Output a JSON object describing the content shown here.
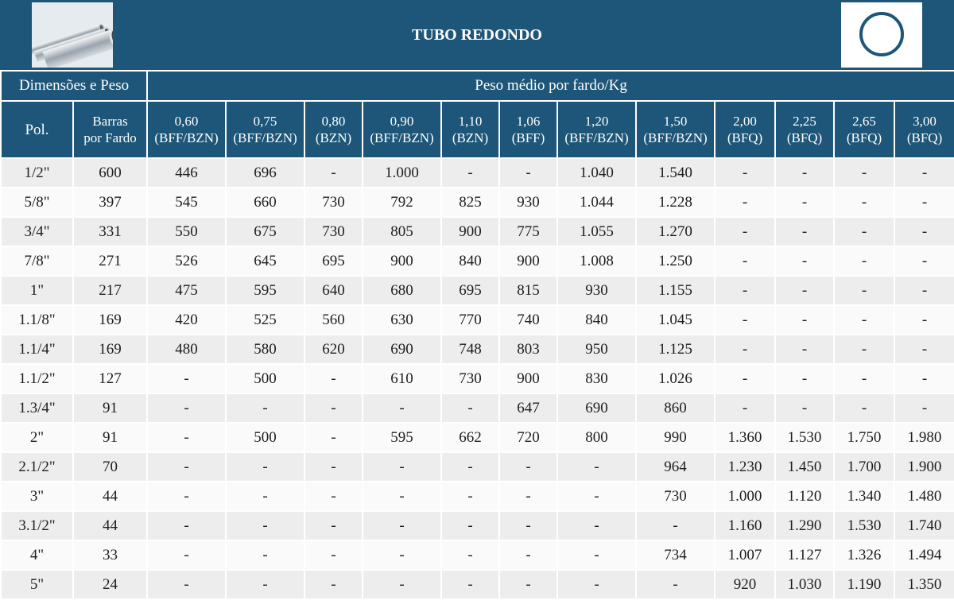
{
  "title": "TUBO REDONDO",
  "icons": {
    "photo": "round-tubes-photo",
    "logo": "round-tube-circle-icon"
  },
  "colors": {
    "header_bg": "#1d5678",
    "row_odd": "#ededed",
    "row_even": "#fafafa",
    "text": "#1e1e1e",
    "header_text": "#ffffff"
  },
  "header": {
    "group_left": "Dimensões e Peso",
    "group_right": "Peso médio por fardo/Kg",
    "pol": "Pol.",
    "barras": {
      "line1": "Barras",
      "line2": "por Fardo"
    },
    "columns": [
      {
        "line1": "0,60",
        "line2": "(BFF/BZN)"
      },
      {
        "line1": "0,75",
        "line2": "(BFF/BZN)"
      },
      {
        "line1": "0,80",
        "line2": "(BZN)"
      },
      {
        "line1": "0,90",
        "line2": "(BFF/BZN)"
      },
      {
        "line1": "1,10",
        "line2": "(BZN)"
      },
      {
        "line1": "1,06",
        "line2": "(BFF)"
      },
      {
        "line1": "1,20",
        "line2": "(BFF/BZN)"
      },
      {
        "line1": "1,50",
        "line2": "(BFF/BZN)"
      },
      {
        "line1": "2,00",
        "line2": "(BFQ)"
      },
      {
        "line1": "2,25",
        "line2": "(BFQ)"
      },
      {
        "line1": "2,65",
        "line2": "(BFQ)"
      },
      {
        "line1": "3,00",
        "line2": "(BFQ)"
      }
    ]
  },
  "rows": [
    {
      "pol": "1/2\"",
      "barras": "600",
      "values": [
        "446",
        "696",
        "-",
        "1.000",
        "-",
        "-",
        "1.040",
        "1.540",
        "-",
        "-",
        "-",
        "-"
      ]
    },
    {
      "pol": "5/8\"",
      "barras": "397",
      "values": [
        "545",
        "660",
        "730",
        "792",
        "825",
        "930",
        "1.044",
        "1.228",
        "-",
        "-",
        "-",
        "-"
      ]
    },
    {
      "pol": "3/4\"",
      "barras": "331",
      "values": [
        "550",
        "675",
        "730",
        "805",
        "900",
        "775",
        "1.055",
        "1.270",
        "-",
        "-",
        "-",
        "-"
      ]
    },
    {
      "pol": "7/8\"",
      "barras": "271",
      "values": [
        "526",
        "645",
        "695",
        "900",
        "840",
        "900",
        "1.008",
        "1.250",
        "-",
        "-",
        "-",
        "-"
      ]
    },
    {
      "pol": "1\"",
      "barras": "217",
      "values": [
        "475",
        "595",
        "640",
        "680",
        "695",
        "815",
        "930",
        "1.155",
        "-",
        "-",
        "-",
        "-"
      ]
    },
    {
      "pol": "1.1/8\"",
      "barras": "169",
      "values": [
        "420",
        "525",
        "560",
        "630",
        "770",
        "740",
        "840",
        "1.045",
        "-",
        "-",
        "-",
        "-"
      ]
    },
    {
      "pol": "1.1/4\"",
      "barras": "169",
      "values": [
        "480",
        "580",
        "620",
        "690",
        "748",
        "803",
        "950",
        "1.125",
        "-",
        "-",
        "-",
        "-"
      ]
    },
    {
      "pol": "1.1/2\"",
      "barras": "127",
      "values": [
        "-",
        "500",
        "-",
        "610",
        "730",
        "900",
        "830",
        "1.026",
        "-",
        "-",
        "-",
        "-"
      ]
    },
    {
      "pol": "1.3/4\"",
      "barras": "91",
      "values": [
        "-",
        "-",
        "-",
        "-",
        "-",
        "647",
        "690",
        "860",
        "-",
        "-",
        "-",
        "-"
      ]
    },
    {
      "pol": "2\"",
      "barras": "91",
      "values": [
        "-",
        "500",
        "-",
        "595",
        "662",
        "720",
        "800",
        "990",
        "1.360",
        "1.530",
        "1.750",
        "1.980"
      ]
    },
    {
      "pol": "2.1/2\"",
      "barras": "70",
      "values": [
        "-",
        "-",
        "-",
        "-",
        "-",
        "-",
        "-",
        "964",
        "1.230",
        "1.450",
        "1.700",
        "1.900"
      ]
    },
    {
      "pol": "3\"",
      "barras": "44",
      "values": [
        "-",
        "-",
        "-",
        "-",
        "-",
        "-",
        "-",
        "730",
        "1.000",
        "1.120",
        "1.340",
        "1.480"
      ]
    },
    {
      "pol": "3.1/2\"",
      "barras": "44",
      "values": [
        "-",
        "-",
        "-",
        "-",
        "-",
        "-",
        "-",
        "-",
        "1.160",
        "1.290",
        "1.530",
        "1.740"
      ]
    },
    {
      "pol": "4\"",
      "barras": "33",
      "values": [
        "-",
        "-",
        "-",
        "-",
        "-",
        "-",
        "-",
        "734",
        "1.007",
        "1.127",
        "1.326",
        "1.494"
      ]
    },
    {
      "pol": "5\"",
      "barras": "24",
      "values": [
        "-",
        "-",
        "-",
        "-",
        "-",
        "-",
        "-",
        "-",
        "920",
        "1.030",
        "1.190",
        "1.350"
      ]
    }
  ]
}
